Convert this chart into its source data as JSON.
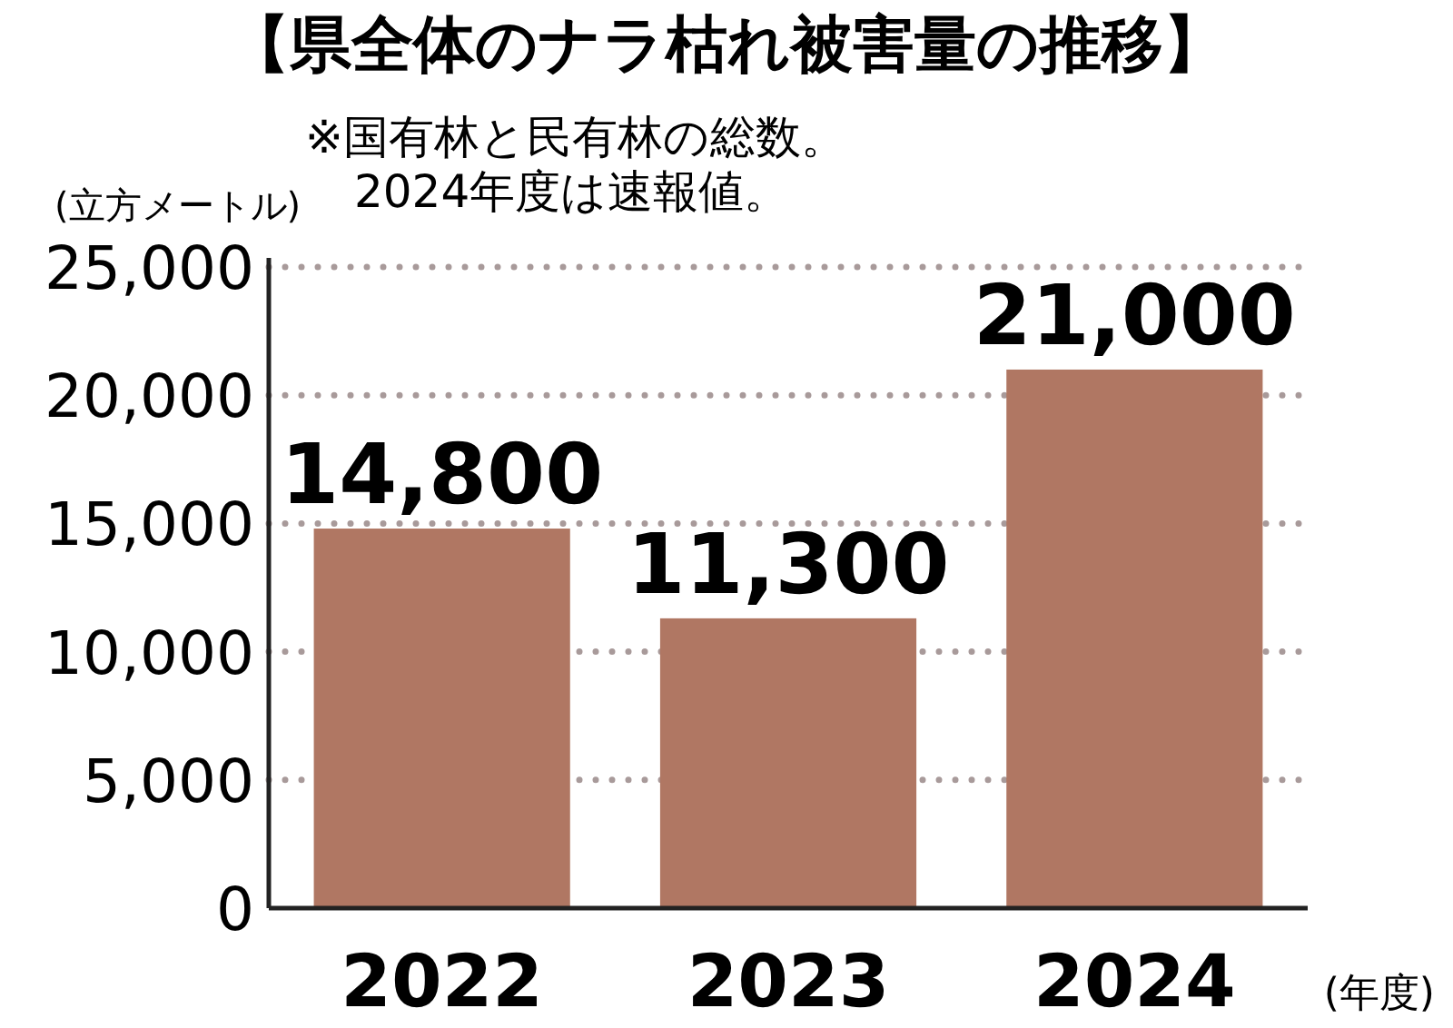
{
  "chart_data": {
    "type": "bar",
    "title": "【県全体のナラ枯れ被害量の推移】",
    "annotations": [
      "※国有林と民有林の総数。",
      "2024年度は速報値。"
    ],
    "ylabel": "(立方メートル)",
    "xlabel": "(年度)",
    "categories": [
      "2022",
      "2023",
      "2024"
    ],
    "values": [
      14800,
      11300,
      21000
    ],
    "color": "#b07763",
    "value_labels": [
      "14,800",
      "11,300",
      "21,000"
    ],
    "ylim": [
      0,
      25000
    ],
    "yticks": [
      {
        "value": 0,
        "label": "0"
      },
      {
        "value": 5000,
        "label": "5,000"
      },
      {
        "value": 10000,
        "label": "10,000"
      },
      {
        "value": 15000,
        "label": "15,000"
      },
      {
        "value": 20000,
        "label": "20,000"
      },
      {
        "value": 25000,
        "label": "25,000"
      }
    ],
    "grid": "y"
  }
}
